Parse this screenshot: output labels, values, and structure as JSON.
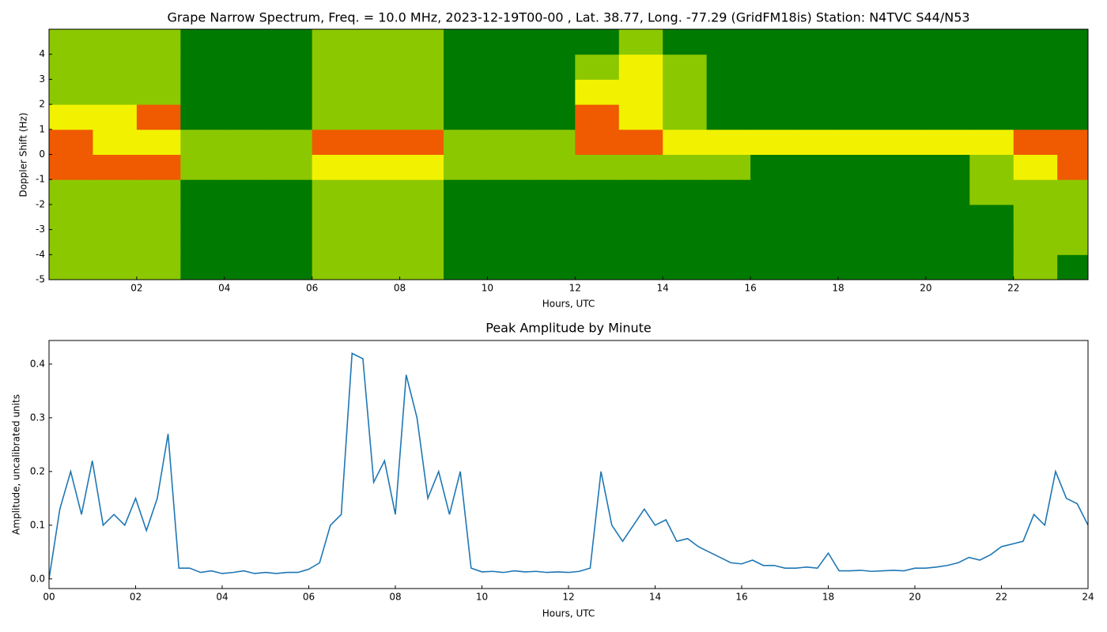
{
  "chart_data": [
    {
      "type": "spectrogram",
      "title": "Grape Narrow Spectrum, Freq. = 10.0 MHz, 2023-12-19T00-00 , Lat.  38.77, Long. -77.29 (GridFM18is) Station: N4TVC S44/N53",
      "xlabel": "Hours, UTC",
      "ylabel": "Doppler Shift (Hz)",
      "xlim": [
        0,
        23.7
      ],
      "ylim": [
        -5,
        5
      ],
      "xticks": [
        {
          "value": 2,
          "label": "02"
        },
        {
          "value": 4,
          "label": "04"
        },
        {
          "value": 6,
          "label": "06"
        },
        {
          "value": 8,
          "label": "08"
        },
        {
          "value": 10,
          "label": "10"
        },
        {
          "value": 12,
          "label": "12"
        },
        {
          "value": 14,
          "label": "14"
        },
        {
          "value": 16,
          "label": "16"
        },
        {
          "value": 18,
          "label": "18"
        },
        {
          "value": 20,
          "label": "20"
        },
        {
          "value": 22,
          "label": "22"
        }
      ],
      "yticks": [
        -5,
        -4,
        -3,
        -2,
        -1,
        0,
        1,
        2,
        3,
        4
      ],
      "xbins": [
        0,
        1,
        2,
        3,
        4,
        5,
        6,
        7,
        8,
        9,
        10,
        11,
        12,
        13,
        14,
        15,
        16,
        17,
        18,
        19,
        20,
        21,
        22,
        23,
        23.7
      ],
      "ybins": [
        -5,
        -4,
        -3,
        -2,
        -1,
        0,
        1,
        2,
        3,
        4,
        5
      ],
      "colorscale": [
        "#007a00",
        "#8cc800",
        "#f2f200",
        "#f05a00"
      ],
      "z": [
        [
          1,
          1,
          1,
          0,
          0,
          0,
          1,
          1,
          1,
          0,
          0,
          0,
          0,
          0,
          0,
          0,
          0,
          0,
          0,
          0,
          0,
          0,
          1,
          0
        ],
        [
          1,
          1,
          1,
          0,
          0,
          0,
          1,
          1,
          1,
          0,
          0,
          0,
          0,
          0,
          0,
          0,
          0,
          0,
          0,
          0,
          0,
          0,
          1,
          1
        ],
        [
          1,
          1,
          1,
          0,
          0,
          0,
          1,
          1,
          1,
          0,
          0,
          0,
          0,
          0,
          0,
          0,
          0,
          0,
          0,
          0,
          0,
          0,
          1,
          1
        ],
        [
          1,
          1,
          1,
          0,
          0,
          0,
          1,
          1,
          1,
          0,
          0,
          0,
          0,
          0,
          0,
          0,
          0,
          0,
          0,
          0,
          0,
          1,
          1,
          1
        ],
        [
          3,
          3,
          3,
          1,
          1,
          1,
          2,
          2,
          2,
          1,
          1,
          1,
          1,
          1,
          1,
          1,
          0,
          0,
          0,
          0,
          0,
          1,
          2,
          3
        ],
        [
          3,
          2,
          2,
          1,
          1,
          1,
          3,
          3,
          3,
          1,
          1,
          1,
          3,
          3,
          2,
          2,
          2,
          2,
          2,
          2,
          2,
          2,
          3,
          3
        ],
        [
          2,
          2,
          3,
          0,
          0,
          0,
          1,
          1,
          1,
          0,
          0,
          0,
          3,
          2,
          1,
          0,
          0,
          0,
          0,
          0,
          0,
          0,
          0,
          0
        ],
        [
          1,
          1,
          1,
          0,
          0,
          0,
          1,
          1,
          1,
          0,
          0,
          0,
          2,
          2,
          1,
          0,
          0,
          0,
          0,
          0,
          0,
          0,
          0,
          0
        ],
        [
          1,
          1,
          1,
          0,
          0,
          0,
          1,
          1,
          1,
          0,
          0,
          0,
          1,
          2,
          1,
          0,
          0,
          0,
          0,
          0,
          0,
          0,
          0,
          0
        ],
        [
          1,
          1,
          1,
          0,
          0,
          0,
          1,
          1,
          1,
          0,
          0,
          0,
          0,
          1,
          0,
          0,
          0,
          0,
          0,
          0,
          0,
          0,
          0,
          0
        ]
      ]
    },
    {
      "type": "line",
      "title": "Peak Amplitude by Minute",
      "xlabel": "Hours, UTC",
      "ylabel": "Amplitude, uncalibrated units",
      "xlim": [
        0,
        24
      ],
      "ylim": [
        -0.018,
        0.444
      ],
      "xticks": [
        {
          "value": 0,
          "label": "00"
        },
        {
          "value": 2,
          "label": "02"
        },
        {
          "value": 4,
          "label": "04"
        },
        {
          "value": 6,
          "label": "06"
        },
        {
          "value": 8,
          "label": "08"
        },
        {
          "value": 10,
          "label": "10"
        },
        {
          "value": 12,
          "label": "12"
        },
        {
          "value": 14,
          "label": "14"
        },
        {
          "value": 16,
          "label": "16"
        },
        {
          "value": 18,
          "label": "18"
        },
        {
          "value": 20,
          "label": "20"
        },
        {
          "value": 22,
          "label": "22"
        },
        {
          "value": 24,
          "label": "24"
        }
      ],
      "yticks": [
        {
          "value": 0,
          "label": "0.0"
        },
        0.1,
        0.2,
        0.3,
        0.4
      ],
      "color": "#1f77b4",
      "x": [
        0,
        0.25,
        0.5,
        0.75,
        1,
        1.25,
        1.5,
        1.75,
        2,
        2.25,
        2.5,
        2.75,
        3,
        3.25,
        3.5,
        3.75,
        4,
        4.25,
        4.5,
        4.75,
        5,
        5.25,
        5.5,
        5.75,
        6,
        6.25,
        6.5,
        6.75,
        7,
        7.25,
        7.5,
        7.75,
        8,
        8.25,
        8.5,
        8.75,
        9,
        9.25,
        9.5,
        9.75,
        10,
        10.25,
        10.5,
        10.75,
        11,
        11.25,
        11.5,
        11.75,
        12,
        12.25,
        12.5,
        12.75,
        13,
        13.25,
        13.5,
        13.75,
        14,
        14.25,
        14.5,
        14.75,
        15,
        15.25,
        15.5,
        15.75,
        16,
        16.25,
        16.5,
        16.75,
        17,
        17.25,
        17.5,
        17.75,
        18,
        18.25,
        18.5,
        18.75,
        19,
        19.25,
        19.5,
        19.75,
        20,
        20.25,
        20.5,
        20.75,
        21,
        21.25,
        21.5,
        21.75,
        22,
        22.25,
        22.5,
        22.75,
        23,
        23.25,
        23.5,
        23.75,
        24
      ],
      "values": [
        0.0,
        0.13,
        0.2,
        0.12,
        0.22,
        0.1,
        0.12,
        0.1,
        0.15,
        0.09,
        0.15,
        0.27,
        0.02,
        0.02,
        0.012,
        0.015,
        0.01,
        0.012,
        0.015,
        0.01,
        0.012,
        0.01,
        0.012,
        0.012,
        0.018,
        0.03,
        0.1,
        0.12,
        0.42,
        0.41,
        0.18,
        0.22,
        0.12,
        0.38,
        0.3,
        0.15,
        0.2,
        0.12,
        0.2,
        0.02,
        0.013,
        0.014,
        0.012,
        0.015,
        0.013,
        0.014,
        0.012,
        0.013,
        0.012,
        0.014,
        0.02,
        0.2,
        0.1,
        0.07,
        0.1,
        0.13,
        0.1,
        0.11,
        0.07,
        0.075,
        0.06,
        0.05,
        0.04,
        0.03,
        0.028,
        0.035,
        0.025,
        0.025,
        0.02,
        0.02,
        0.022,
        0.02,
        0.048,
        0.015,
        0.015,
        0.016,
        0.014,
        0.015,
        0.016,
        0.015,
        0.02,
        0.02,
        0.022,
        0.025,
        0.03,
        0.04,
        0.035,
        0.045,
        0.06,
        0.065,
        0.07,
        0.12,
        0.1,
        0.2,
        0.15,
        0.14,
        0.1
      ]
    }
  ]
}
